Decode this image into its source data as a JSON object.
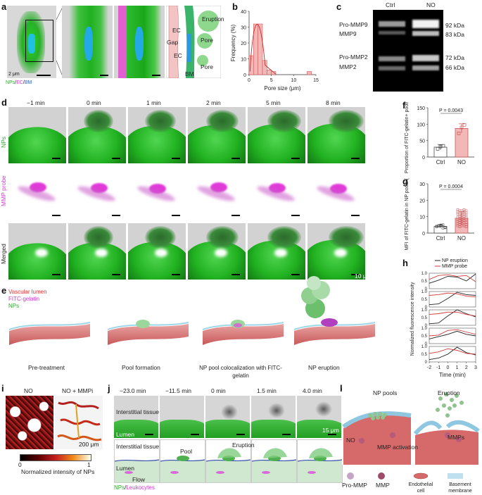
{
  "panels": {
    "a": {
      "label": "a",
      "legend_nps": "NPs",
      "legend_ec": "EC",
      "legend_bm": "BM",
      "legend_sep": "/",
      "scale": "2 μm",
      "schematic": {
        "eruption": "Eruption",
        "ec1": "EC",
        "gap": "Gap",
        "pore1": "Pore",
        "ec2": "EC",
        "pore2": "Pore",
        "bm": "BM"
      }
    },
    "b": {
      "label": "b"
    },
    "c": {
      "label": "c",
      "lanes": [
        "Ctrl",
        "NO"
      ],
      "bands": [
        {
          "name": "Pro-MMP9",
          "kda": "92 kDa"
        },
        {
          "name": "MMP9",
          "kda": "83 kDa"
        },
        {
          "name": "Pro-MMP2",
          "kda": "72 kDa"
        },
        {
          "name": "MMP2",
          "kda": "66 kDa"
        }
      ]
    },
    "d": {
      "label": "d",
      "times": [
        "−1 min",
        "0 min",
        "1 min",
        "2 min",
        "5 min",
        "8 min"
      ],
      "rows": [
        "NPs",
        "MMP probe",
        "Merged"
      ],
      "scale": "10 μm"
    },
    "e": {
      "label": "e",
      "legend": [
        "Vascular lumen",
        "FITC-gelatin",
        "NPs"
      ],
      "steps": [
        "Pre-treatment",
        "Pool formation",
        "NP pool colocalization with FITC-gelatin",
        "NP eruption"
      ]
    },
    "f": {
      "label": "f"
    },
    "g": {
      "label": "g"
    },
    "h": {
      "label": "h"
    },
    "i": {
      "label": "i",
      "titles": [
        "NO",
        "NO + MMPi"
      ],
      "scale": "200 μm",
      "colorbar_min": "0",
      "colorbar_max": "1",
      "colorbar_label": "Normalized intensity of NPs"
    },
    "j": {
      "label": "j",
      "times": [
        "−23.0 min",
        "−11.5 min",
        "0 min",
        "1.5 min",
        "4.0 min"
      ],
      "interstitial": "Interstitial tissue",
      "lumen": "Lumen",
      "scale": "15 μm",
      "pool": "Pool",
      "eruption": "Eruption",
      "flow": "Flow",
      "legend_nps": "NPs",
      "legend_leuk": "Leukocytes",
      "legend_sep": "/"
    },
    "k": {
      "label": "k",
      "np_pools": "NP pools",
      "eruption": "Eruption",
      "no": "NO",
      "mmps": "MMPs",
      "mmp_activation": "MMP activation",
      "legend": [
        "Pro-MMP",
        "MMP",
        "Endothelial cell",
        "Basement membrane"
      ]
    }
  },
  "chart_data": [
    {
      "panel": "b",
      "type": "bar",
      "xlabel": "Pore size (μm)",
      "ylabel": "Frequency (%)",
      "xlim": [
        0,
        15
      ],
      "ylim": [
        0,
        40
      ],
      "xticks": [
        0,
        5,
        10,
        15
      ],
      "yticks": [
        0,
        10,
        20,
        30,
        40
      ],
      "bins": [
        {
          "x": 0.5,
          "value": 12
        },
        {
          "x": 1.5,
          "value": 32
        },
        {
          "x": 2.5,
          "value": 32
        },
        {
          "x": 3.5,
          "value": 9
        },
        {
          "x": 4.5,
          "value": 3
        },
        {
          "x": 5.5,
          "value": 2
        },
        {
          "x": 13.5,
          "value": 2
        }
      ],
      "fit": "lognormal"
    },
    {
      "panel": "f",
      "type": "bar",
      "ylabel": "Proportion of FITC-gelatin+ pools (%)",
      "categories": [
        "Ctrl",
        "NO"
      ],
      "values": [
        30,
        87
      ],
      "errors": [
        8,
        14
      ],
      "points": [
        [
          25,
          32,
          34
        ],
        [
          72,
          90,
          98
        ]
      ],
      "ylim": [
        0,
        150
      ],
      "yticks": [
        0,
        50,
        100,
        150
      ],
      "pvalue": "P = 0.0043",
      "colors": [
        "#ffffff",
        "#f2b8b8"
      ]
    },
    {
      "panel": "g",
      "type": "bar",
      "ylabel": "MFI of FITC-gelatin in NP pools (×10³)",
      "categories": [
        "Ctrl",
        "NO"
      ],
      "values": [
        4,
        9
      ],
      "errors": [
        1,
        4
      ],
      "ylim": [
        0,
        30
      ],
      "yticks": [
        0,
        10,
        20,
        30
      ],
      "pvalue": "P = 0.0004",
      "colors": [
        "#ffffff",
        "#f2b8b8"
      ]
    },
    {
      "panel": "h",
      "type": "line",
      "xlabel": "Time (min)",
      "ylabel": "Normalized fluorescence intensity",
      "x": [
        -2,
        -1,
        0,
        1,
        2,
        3
      ],
      "xticks": [
        -2,
        -1,
        0,
        1,
        2,
        3
      ],
      "yticks": [
        0,
        0.5,
        1.0
      ],
      "legend": [
        "NP eruption",
        "MMP probe"
      ],
      "colors": [
        "#222222",
        "#d33a3a"
      ],
      "subplots": [
        {
          "np": [
            0.35,
            0.55,
            0.8,
            0.75,
            0.5,
            0.95
          ],
          "mmp": [
            0.6,
            0.85,
            0.9,
            0.8,
            0.85,
            0.45
          ]
        },
        {
          "np": [
            0.15,
            0.2,
            0.55,
            0.95,
            0.8,
            0.75
          ],
          "mmp": [
            0.75,
            0.8,
            0.9,
            0.85,
            0.7,
            0.65
          ]
        },
        {
          "np": [
            0.1,
            0.15,
            0.6,
            1.0,
            0.75,
            0.55
          ],
          "mmp": [
            0.7,
            0.75,
            0.85,
            0.85,
            0.7,
            0.6
          ]
        },
        {
          "np": [
            0.3,
            0.45,
            0.6,
            0.8,
            0.6,
            0.5
          ],
          "mmp": [
            0.5,
            0.55,
            0.85,
            0.9,
            0.75,
            0.6
          ]
        },
        {
          "np": [
            0.15,
            0.25,
            0.5,
            0.95,
            0.6,
            0.45
          ],
          "mmp": [
            0.55,
            0.65,
            0.85,
            0.75,
            0.55,
            0.5
          ]
        }
      ]
    }
  ]
}
